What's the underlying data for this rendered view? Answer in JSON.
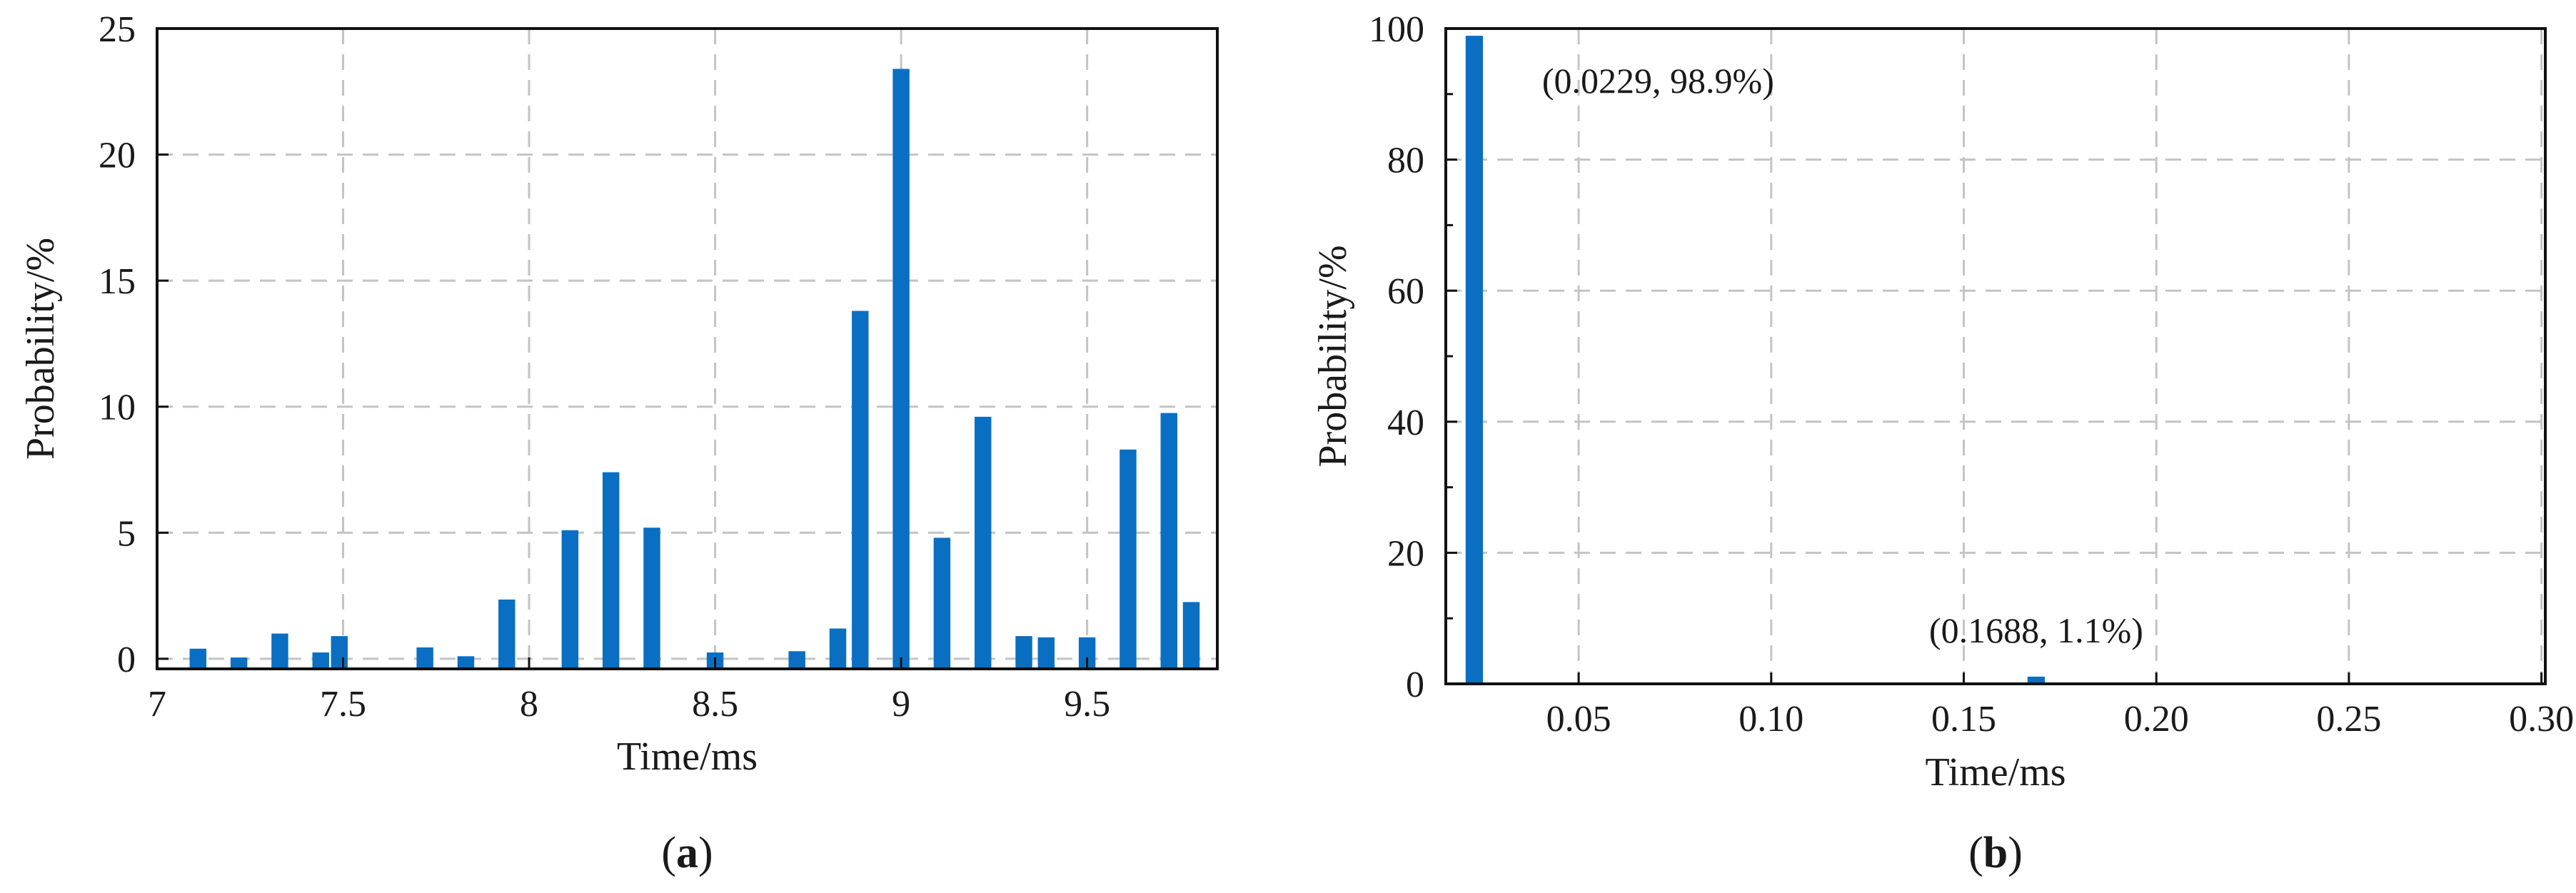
{
  "chart_data": [
    {
      "type": "bar",
      "panel": "(a)",
      "panel_label_parts": [
        "(",
        "a",
        ")"
      ],
      "xlabel": "Time/ms",
      "ylabel": "Probability/%",
      "xlim": [
        7.0,
        9.85
      ],
      "ylim": [
        -0.4,
        25
      ],
      "xticks": [
        7,
        7.5,
        8,
        8.5,
        9,
        9.5
      ],
      "xtick_labels": [
        "7",
        "7.5",
        "8",
        "8.5",
        "9",
        "9.5"
      ],
      "yticks": [
        0,
        5,
        10,
        15,
        20,
        25
      ],
      "ytick_labels": [
        "0",
        "5",
        "10",
        "15",
        "20",
        "25"
      ],
      "grid": true,
      "bar_color": "#0a6fc2",
      "bar_width": 0.045,
      "x": [
        7.11,
        7.22,
        7.33,
        7.44,
        7.49,
        7.72,
        7.83,
        7.94,
        8.11,
        8.22,
        8.33,
        8.5,
        8.72,
        8.83,
        8.89,
        9.0,
        9.11,
        9.22,
        9.33,
        9.39,
        9.5,
        9.61,
        9.72,
        9.78
      ],
      "values": [
        0.4,
        0.05,
        1.0,
        0.25,
        0.9,
        0.45,
        0.1,
        2.35,
        5.1,
        7.4,
        5.2,
        0.25,
        0.3,
        1.2,
        13.8,
        23.4,
        4.8,
        9.6,
        0.9,
        0.85,
        0.85,
        8.3,
        9.75,
        2.25
      ]
    },
    {
      "type": "bar",
      "panel": "(b)",
      "panel_label_parts": [
        "(",
        "b",
        ")"
      ],
      "xlabel": "Time/ms",
      "ylabel": "Probability/%",
      "xlim": [
        0.0155,
        0.301
      ],
      "ylim": [
        0,
        100
      ],
      "xticks": [
        0.05,
        0.1,
        0.15,
        0.2,
        0.25,
        0.3
      ],
      "xtick_labels": [
        "0.05",
        "0.10",
        "0.15",
        "0.20",
        "0.25",
        "0.30"
      ],
      "yticks": [
        0,
        20,
        40,
        60,
        80,
        100
      ],
      "ytick_labels": [
        "0",
        "20",
        "40",
        "60",
        "80",
        "100"
      ],
      "grid": true,
      "bar_color": "#0a6fc2",
      "bar_width": 0.0045,
      "x": [
        0.0229,
        0.1688
      ],
      "values": [
        98.9,
        1.1
      ],
      "annotations": [
        "(0.0229, 98.9%)",
        "(0.1688, 1.1%)"
      ]
    }
  ]
}
